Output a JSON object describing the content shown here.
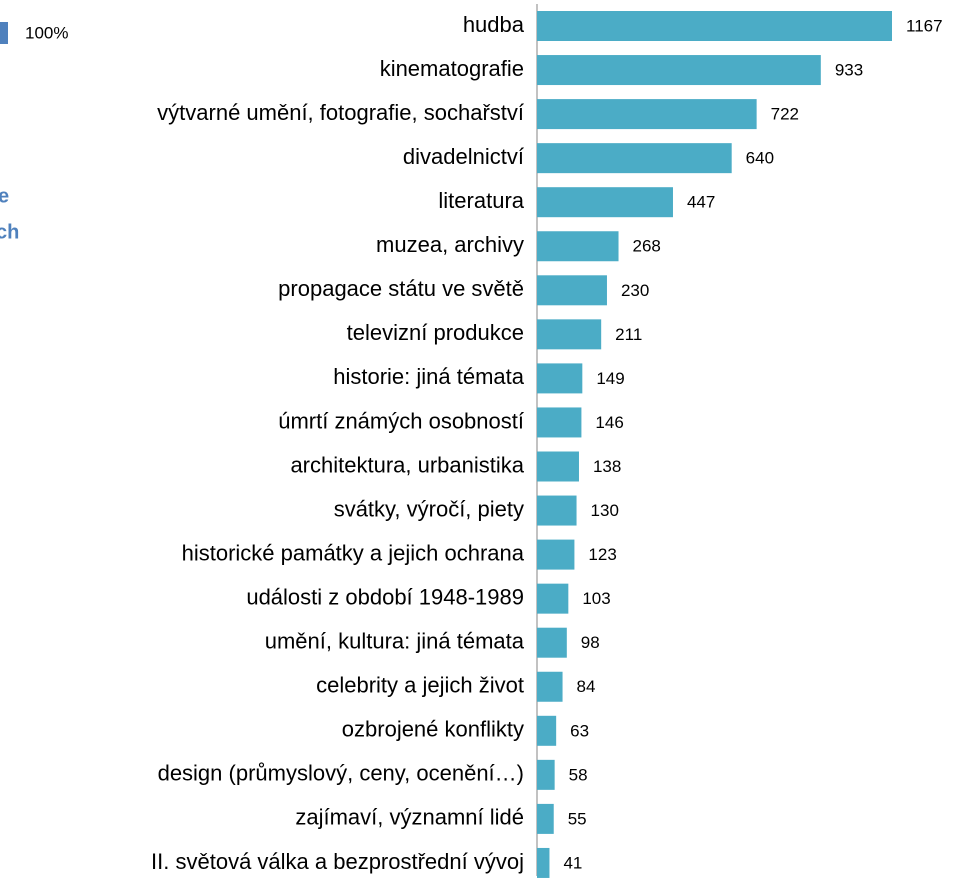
{
  "legend_fragment": {
    "label": "100%",
    "color": "#4f81bd"
  },
  "cropped_texts": [
    "e",
    "ch"
  ],
  "chart_data": {
    "type": "bar",
    "orientation": "horizontal",
    "color": "#4bacc6",
    "categories": [
      "hudba",
      "kinematografie",
      "výtvarné umění, fotografie, sochařství",
      "divadelnictví",
      "literatura",
      "muzea, archivy",
      "propagace státu ve světě",
      "televizní produkce",
      "historie: jiná témata",
      "úmrtí známých osobností",
      "architektura, urbanistika",
      "svátky, výročí, piety",
      "historické památky a jejich ochrana",
      "události z období 1948-1989",
      "umění, kultura: jiná témata",
      "celebrity a jejich život",
      "ozbrojené konflikty",
      "design (průmyslový, ceny, ocenění…)",
      "zajímaví, významní lidé",
      "II. světová válka a bezprostřední vývoj"
    ],
    "values": [
      1167,
      933,
      722,
      640,
      447,
      268,
      230,
      211,
      149,
      146,
      138,
      130,
      123,
      103,
      98,
      84,
      63,
      58,
      55,
      41
    ]
  }
}
